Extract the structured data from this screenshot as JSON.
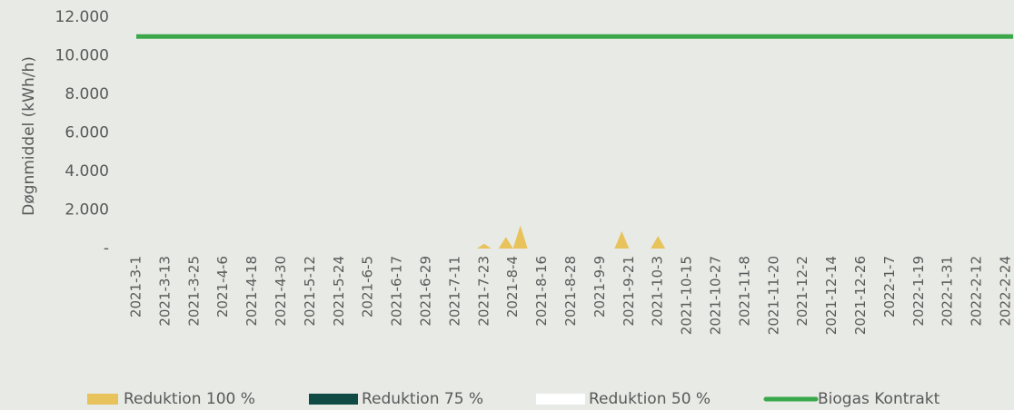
{
  "chart_data": {
    "type": "area",
    "y_label": "Døgnmiddel (kWh/h)",
    "categories": [
      "2021-3-1",
      null,
      null,
      null,
      "2021-3-13",
      null,
      null,
      null,
      "2021-3-25",
      null,
      null,
      null,
      "2021-4-6",
      null,
      null,
      null,
      "2021-4-18",
      null,
      null,
      null,
      "2021-4-30",
      null,
      null,
      null,
      "2021-5-12",
      null,
      null,
      null,
      "2021-5-24",
      null,
      null,
      null,
      "2021-6-5",
      null,
      null,
      null,
      "2021-6-17",
      null,
      null,
      null,
      "2021-6-29",
      null,
      null,
      null,
      "2021-7-11",
      null,
      null,
      null,
      "2021-7-23",
      null,
      null,
      null,
      "2021-8-4",
      null,
      null,
      null,
      "2021-8-16",
      null,
      null,
      null,
      "2021-8-28",
      null,
      null,
      null,
      "2021-9-9",
      null,
      null,
      null,
      "2021-9-21",
      null,
      null,
      null,
      "2021-10-3",
      null,
      null,
      null,
      "2021-10-15",
      null,
      null,
      null,
      "2021-10-27",
      null,
      null,
      null,
      "2021-11-8",
      null,
      null,
      null,
      "2021-11-20",
      null,
      null,
      null,
      "2021-12-2",
      null,
      null,
      null,
      "2021-12-14",
      null,
      null,
      null,
      "2021-12-26",
      null,
      null,
      null,
      "2022-1-7",
      null,
      null,
      null,
      "2022-1-19",
      null,
      null,
      null,
      "2022-1-31",
      null,
      null,
      null,
      "2022-2-12",
      null,
      null,
      null,
      "2022-2-24",
      null
    ],
    "series": [
      {
        "name": "Reduktion 100 %",
        "type": "area",
        "color": "#e8c25a",
        "values": [
          0,
          0,
          0,
          0,
          0,
          0,
          0,
          0,
          0,
          0,
          0,
          0,
          0,
          0,
          0,
          0,
          0,
          0,
          0,
          0,
          0,
          0,
          0,
          0,
          0,
          0,
          0,
          0,
          0,
          0,
          0,
          0,
          0,
          0,
          0,
          0,
          0,
          0,
          0,
          0,
          0,
          0,
          0,
          0,
          0,
          0,
          0,
          0,
          250,
          0,
          0,
          600,
          0,
          1200,
          0,
          0,
          0,
          0,
          0,
          0,
          0,
          0,
          0,
          0,
          0,
          0,
          0,
          900,
          0,
          0,
          0,
          0,
          650,
          0,
          0,
          0,
          0,
          0,
          0,
          0,
          0,
          0,
          0,
          0,
          0,
          0,
          0,
          0,
          0,
          0,
          0,
          0,
          0,
          0,
          0,
          0,
          0,
          0,
          0,
          0,
          0,
          0,
          0,
          0,
          0,
          0,
          0,
          0,
          0,
          0,
          0,
          0,
          0,
          0,
          0,
          0,
          0,
          0,
          0,
          0,
          0,
          0
        ]
      },
      {
        "name": "Reduktion 75 %",
        "type": "area",
        "color": "#0f4a45",
        "values": [
          0,
          0,
          0,
          0,
          0,
          0,
          0,
          0,
          0,
          0,
          0,
          0,
          0,
          0,
          0,
          0,
          0,
          0,
          0,
          0,
          0,
          0,
          0,
          0,
          0,
          0,
          0,
          0,
          0,
          0,
          0,
          0,
          0,
          0,
          0,
          0,
          0,
          0,
          0,
          0,
          0,
          0,
          0,
          0,
          0,
          0,
          0,
          0,
          0,
          0,
          0,
          0,
          0,
          0,
          0,
          0,
          0,
          0,
          0,
          0,
          0,
          0,
          0,
          0,
          0,
          0,
          0,
          0,
          0,
          0,
          0,
          0,
          0,
          0,
          0,
          0,
          0,
          0,
          0,
          0,
          0,
          0,
          0,
          0,
          0,
          0,
          0,
          0,
          0,
          0,
          0,
          0,
          0,
          0,
          0,
          0,
          0,
          0,
          0,
          0,
          0,
          0,
          0,
          0,
          0,
          0,
          0,
          0,
          0,
          0,
          0,
          0,
          0,
          0,
          0,
          0,
          0,
          0,
          0,
          0,
          0,
          0
        ]
      },
      {
        "name": "Reduktion 50 %",
        "type": "area",
        "color": "#ffffff",
        "values": [
          0,
          0,
          0,
          0,
          0,
          0,
          0,
          0,
          0,
          0,
          0,
          0,
          0,
          0,
          0,
          0,
          0,
          0,
          0,
          0,
          0,
          0,
          0,
          0,
          0,
          0,
          0,
          0,
          0,
          0,
          0,
          0,
          0,
          0,
          0,
          0,
          0,
          0,
          0,
          0,
          0,
          0,
          0,
          0,
          0,
          0,
          0,
          0,
          0,
          0,
          0,
          0,
          0,
          0,
          0,
          0,
          0,
          0,
          0,
          0,
          0,
          0,
          0,
          0,
          0,
          0,
          0,
          0,
          0,
          0,
          0,
          0,
          0,
          0,
          0,
          0,
          0,
          0,
          0,
          0,
          0,
          0,
          0,
          0,
          0,
          0,
          0,
          0,
          0,
          0,
          0,
          0,
          0,
          0,
          0,
          0,
          0,
          0,
          0,
          0,
          0,
          0,
          0,
          0,
          0,
          0,
          0,
          0,
          0,
          0,
          0,
          0,
          0,
          0,
          0,
          0,
          0,
          0,
          0,
          0,
          0,
          0
        ]
      },
      {
        "name": "Biogas Kontrakt",
        "type": "line",
        "color": "#3aa84a",
        "values": [
          11000,
          11000,
          11000,
          11000,
          11000,
          11000,
          11000,
          11000,
          11000,
          11000,
          11000,
          11000,
          11000,
          11000,
          11000,
          11000,
          11000,
          11000,
          11000,
          11000,
          11000,
          11000,
          11000,
          11000,
          11000,
          11000,
          11000,
          11000,
          11000,
          11000,
          11000,
          11000,
          11000,
          11000,
          11000,
          11000,
          11000,
          11000,
          11000,
          11000,
          11000,
          11000,
          11000,
          11000,
          11000,
          11000,
          11000,
          11000,
          11000,
          11000,
          11000,
          11000,
          11000,
          11000,
          11000,
          11000,
          11000,
          11000,
          11000,
          11000,
          11000,
          11000,
          11000,
          11000,
          11000,
          11000,
          11000,
          11000,
          11000,
          11000,
          11000,
          11000,
          11000,
          11000,
          11000,
          11000,
          11000,
          11000,
          11000,
          11000,
          11000,
          11000,
          11000,
          11000,
          11000,
          11000,
          11000,
          11000,
          11000,
          11000,
          11000,
          11000,
          11000,
          11000,
          11000,
          11000,
          11000,
          11000,
          11000,
          11000,
          11000,
          11000,
          11000,
          11000,
          11000,
          11000,
          11000,
          11000,
          11000,
          11000,
          11000,
          11000,
          11000,
          11000,
          11000,
          11000,
          11000,
          11000,
          11000,
          11000,
          11000,
          11000
        ]
      }
    ],
    "ylim": [
      0,
      12000
    ],
    "yticks": [
      {
        "value": 0,
        "label": "-"
      },
      {
        "value": 2000,
        "label": "2.000"
      },
      {
        "value": 4000,
        "label": "4.000"
      },
      {
        "value": 6000,
        "label": "6.000"
      },
      {
        "value": 8000,
        "label": "8.000"
      },
      {
        "value": 10000,
        "label": "10.000"
      },
      {
        "value": 12000,
        "label": "12.000"
      }
    ],
    "grid": false,
    "legend": "bottom"
  }
}
